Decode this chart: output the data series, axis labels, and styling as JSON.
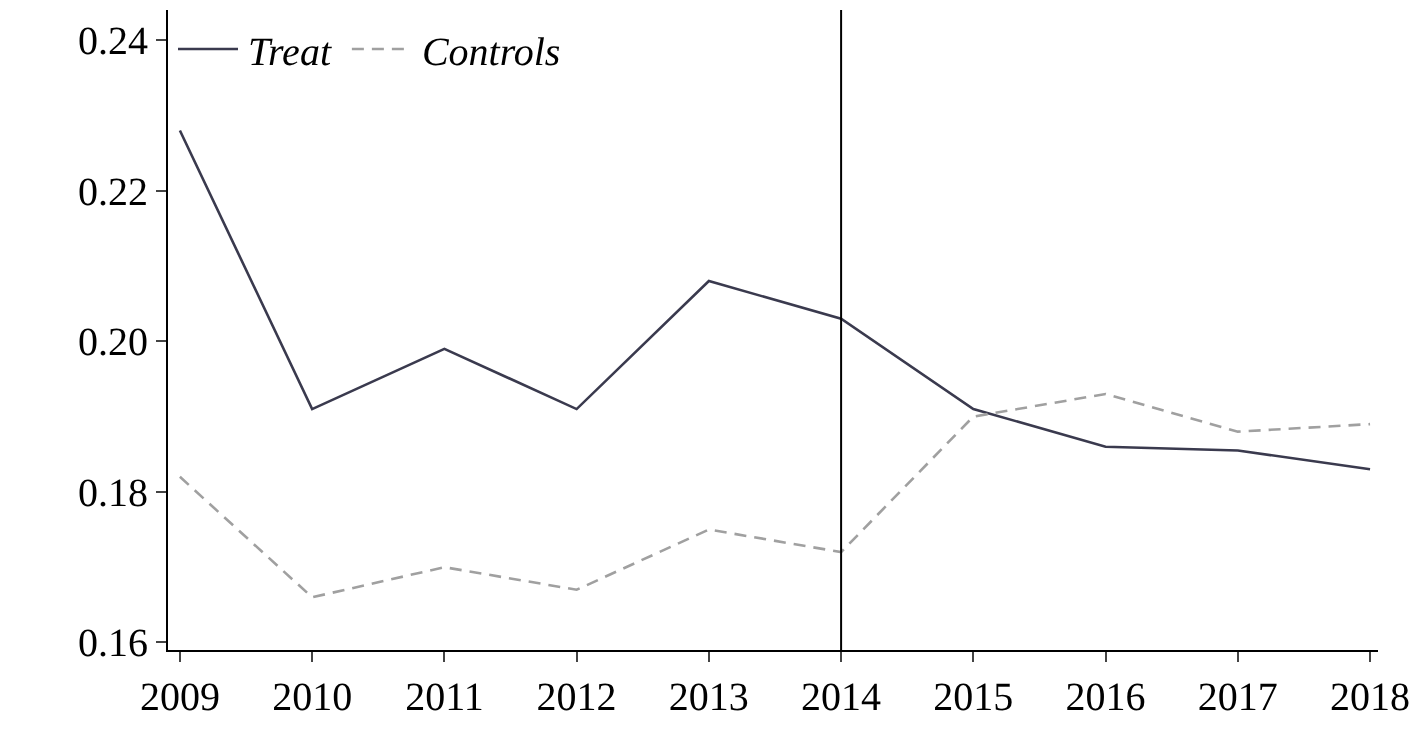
{
  "chart_data": {
    "type": "line",
    "x": [
      2009,
      2010,
      2011,
      2012,
      2013,
      2014,
      2015,
      2016,
      2017,
      2018
    ],
    "series": [
      {
        "name": "Treat",
        "color": "#3a3a4e",
        "line_style": "solid",
        "values": [
          0.228,
          0.191,
          0.199,
          0.191,
          0.208,
          0.203,
          0.191,
          0.186,
          0.1855,
          0.183
        ]
      },
      {
        "name": "Controls",
        "color": "#a0a0a0",
        "line_style": "dashed",
        "values": [
          0.182,
          0.166,
          0.17,
          0.167,
          0.175,
          0.172,
          0.19,
          0.193,
          0.188,
          0.189
        ]
      }
    ],
    "xlim": [
      2008.91,
      2018.06
    ],
    "xticks": [
      2009,
      2010,
      2011,
      2012,
      2013,
      2014,
      2015,
      2016,
      2017,
      2018
    ],
    "ylim": [
      0.159,
      0.244
    ],
    "yticks": [
      {
        "value": 0.16,
        "label": "0.16"
      },
      {
        "value": 0.18,
        "label": "0.18"
      },
      {
        "value": 0.2,
        "label": "0.20"
      },
      {
        "value": 0.22,
        "label": "0.22"
      },
      {
        "value": 0.24,
        "label": "0.24"
      }
    ],
    "ref_lines": [
      {
        "axis": "x",
        "value": 2014,
        "color": "#000000"
      }
    ],
    "legend": "top left",
    "marker": "none"
  }
}
